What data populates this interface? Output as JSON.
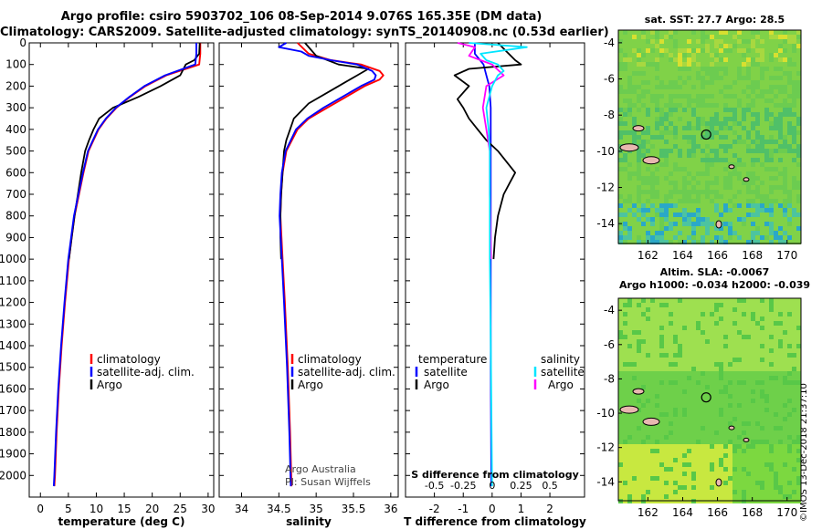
{
  "header": {
    "title_line1": "Argo profile: csiro 5903702_106 08-Sep-2014 9.076S 165.35E (DM data)",
    "title_line2": "Climatology: CARS2009. Satellite-adjusted climatology: synTS_20140908.nc (0.53d earlier)"
  },
  "maps": {
    "sst_title": "sat. SST: 27.7 Argo: 28.5",
    "sla_title_line1": "Altim. SLA: -0.0067",
    "sla_title_line2": "Argo h1000: -0.034 h2000: -0.039",
    "x_ticks": [
      "162",
      "164",
      "166",
      "168",
      "170"
    ],
    "y_ticks": [
      "-4",
      "-6",
      "-8",
      "-10",
      "-12",
      "-14"
    ],
    "float_position": {
      "lon": 165.35,
      "lat": -9.076
    }
  },
  "credit": "©IMOS 13-Dec-2018 21:37:10",
  "attribution": {
    "line1": "Argo Australia",
    "line2": "PI: Susan Wijffels"
  },
  "colors": {
    "climatology": "#ff0000",
    "satellite": "#0000ff",
    "argo": "#000000",
    "sat_salinity": "#00e5ff",
    "argo_salinity": "#ff00ff"
  },
  "chart_data": [
    {
      "type": "line",
      "xlabel": "temperature (deg C)",
      "ylabel": "",
      "xlim": [
        -2,
        31
      ],
      "ylim": [
        2100,
        0
      ],
      "x_ticks": [
        "0",
        "5",
        "10",
        "15",
        "20",
        "25",
        "30"
      ],
      "y_ticks": [
        "0",
        "100",
        "200",
        "300",
        "400",
        "500",
        "600",
        "700",
        "800",
        "900",
        "1000",
        "1100",
        "1200",
        "1300",
        "1400",
        "1500",
        "1600",
        "1700",
        "1800",
        "1900",
        "2000"
      ],
      "legend": [
        "climatology",
        "satellite-adj. clim.",
        "Argo"
      ],
      "series": [
        {
          "name": "climatology",
          "depth": [
            0,
            50,
            100,
            150,
            200,
            250,
            300,
            350,
            400,
            450,
            500,
            600,
            700,
            800,
            900,
            1000,
            1200,
            1400,
            1600,
            1800,
            2000,
            2050
          ],
          "values": [
            28.6,
            28.6,
            28.4,
            22.5,
            18.8,
            16.0,
            13.6,
            11.8,
            10.4,
            9.5,
            8.6,
            7.7,
            6.9,
            6.1,
            5.6,
            5.1,
            4.4,
            3.8,
            3.3,
            2.9,
            2.6,
            2.5
          ]
        },
        {
          "name": "satellite-adj. clim.",
          "depth": [
            0,
            50,
            100,
            150,
            200,
            250,
            300,
            350,
            400,
            450,
            500,
            600,
            700,
            800,
            900,
            1000,
            1200,
            1400,
            1600,
            1800,
            2000,
            2050
          ],
          "values": [
            27.9,
            27.9,
            27.7,
            22.3,
            18.6,
            15.9,
            13.5,
            11.7,
            10.3,
            9.4,
            8.5,
            7.6,
            6.8,
            6.0,
            5.5,
            5.0,
            4.3,
            3.7,
            3.2,
            2.8,
            2.5,
            2.4
          ]
        },
        {
          "name": "Argo",
          "depth": [
            0,
            50,
            80,
            100,
            150,
            200,
            250,
            300,
            350,
            400,
            450,
            500,
            600,
            700,
            800,
            900,
            1000
          ],
          "values": [
            28.5,
            28.4,
            27.5,
            26.0,
            25.0,
            21.5,
            17.5,
            13.0,
            10.5,
            9.5,
            8.7,
            8.0,
            7.3,
            6.7,
            6.1,
            5.6,
            5.1
          ]
        }
      ]
    },
    {
      "type": "line",
      "xlabel": "salinity",
      "ylabel": "",
      "xlim": [
        33.7,
        36.1
      ],
      "ylim": [
        2100,
        0
      ],
      "x_ticks": [
        "34",
        "34.5",
        "35",
        "35.5",
        "36"
      ],
      "legend": [
        "climatology",
        "satellite-adj. clim.",
        "Argo"
      ],
      "series": [
        {
          "name": "climatology",
          "depth": [
            0,
            50,
            80,
            100,
            130,
            150,
            170,
            200,
            250,
            300,
            350,
            400,
            500,
            600,
            700,
            800,
            1000,
            1200,
            1500,
            1800,
            2050
          ],
          "values": [
            34.75,
            34.9,
            35.2,
            35.6,
            35.85,
            35.9,
            35.85,
            35.65,
            35.4,
            35.15,
            34.9,
            34.75,
            34.6,
            34.55,
            34.53,
            34.52,
            34.55,
            34.58,
            34.62,
            34.65,
            34.67
          ]
        },
        {
          "name": "satellite-adj. clim.",
          "depth": [
            0,
            20,
            40,
            60,
            80,
            100,
            130,
            150,
            170,
            200,
            250,
            300,
            350,
            400,
            500,
            600,
            700,
            800,
            1000,
            1200,
            1500,
            1800,
            2050
          ],
          "values": [
            34.6,
            34.5,
            34.8,
            34.9,
            35.2,
            35.55,
            35.75,
            35.8,
            35.78,
            35.6,
            35.35,
            35.1,
            34.88,
            34.73,
            34.59,
            34.54,
            34.52,
            34.51,
            34.54,
            34.57,
            34.61,
            34.64,
            34.66
          ]
        },
        {
          "name": "Argo",
          "depth": [
            0,
            60,
            100,
            120,
            150,
            180,
            220,
            280,
            350,
            400,
            450,
            500,
            600,
            700,
            800,
            900,
            1000
          ],
          "values": [
            34.85,
            35.0,
            35.3,
            35.7,
            35.55,
            35.4,
            35.2,
            34.9,
            34.7,
            34.65,
            34.6,
            34.57,
            34.55,
            34.53,
            34.52,
            34.52,
            34.53
          ]
        }
      ]
    },
    {
      "type": "line",
      "xlabel": "T difference from climatology",
      "ylabel": "",
      "xlim": [
        -3,
        3.2
      ],
      "ylim": [
        2100,
        0
      ],
      "x_ticks": [
        "-2",
        "-1",
        "0",
        "1",
        "2"
      ],
      "secondary_xlabel": "S difference from climatology",
      "secondary_x_ticks": [
        "-0.5",
        "-0.25",
        "0",
        "0.25",
        "0.5"
      ],
      "legend": [
        "temperature",
        "satellite",
        "Argo",
        "salinity",
        "satellite",
        "Argo"
      ],
      "series": [
        {
          "name": "satellite",
          "depth": [
            0,
            50,
            100,
            150,
            200,
            300,
            500,
            1000,
            1500,
            2000,
            2050
          ],
          "values": [
            -0.6,
            -0.6,
            -0.3,
            -0.2,
            -0.1,
            -0.05,
            -0.05,
            -0.05,
            -0.05,
            -0.03,
            -0.03
          ]
        },
        {
          "name": "Argo",
          "depth": [
            0,
            40,
            80,
            100,
            120,
            150,
            200,
            260,
            300,
            350,
            400,
            450,
            500,
            600,
            650,
            700,
            800,
            900,
            1000
          ],
          "values": [
            0.2,
            0.5,
            0.8,
            1.0,
            -0.8,
            -1.3,
            -0.8,
            -1.2,
            -1.0,
            -0.8,
            -0.5,
            -0.2,
            0.2,
            0.8,
            0.6,
            0.4,
            0.2,
            0.1,
            0.05
          ]
        },
        {
          "name": "satellite",
          "depth": [
            0,
            20,
            50,
            80,
            100,
            130,
            150,
            200,
            300,
            400,
            500,
            700,
            1000,
            1500,
            2050
          ],
          "values": [
            -0.2,
            0.3,
            -0.1,
            -0.05,
            0.05,
            0.1,
            0.05,
            0.0,
            -0.05,
            -0.03,
            -0.02,
            -0.02,
            -0.02,
            -0.01,
            0.0
          ]
        },
        {
          "name": "Argo",
          "depth": [
            0,
            20,
            60,
            80,
            100,
            150,
            200,
            300,
            400,
            500,
            700,
            1000
          ],
          "values": [
            -0.3,
            -0.15,
            -0.2,
            -0.1,
            0.0,
            0.1,
            -0.05,
            -0.08,
            -0.05,
            -0.02,
            -0.02,
            -0.01
          ]
        }
      ]
    }
  ]
}
